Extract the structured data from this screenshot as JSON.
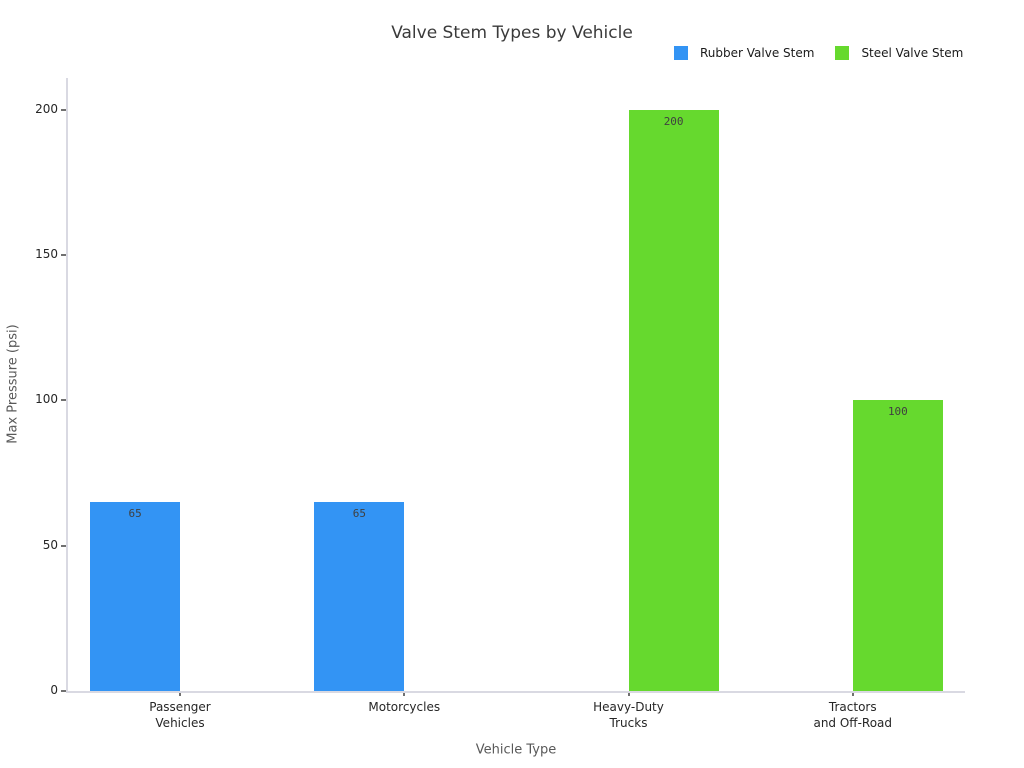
{
  "chart_data": {
    "type": "bar",
    "title": "Valve Stem Types by Vehicle",
    "xlabel": "Vehicle Type",
    "ylabel": "Max Pressure (psi)",
    "categories": [
      "Passenger\nVehicles",
      "Motorcycles",
      "Heavy-Duty\nTrucks",
      "Tractors\nand Off-Road"
    ],
    "series": [
      {
        "name": "Rubber Valve Stem",
        "color": "#3394f4",
        "values": [
          65,
          65,
          0,
          0
        ]
      },
      {
        "name": "Steel Valve Stem",
        "color": "#66d92e",
        "values": [
          0,
          0,
          200,
          100
        ]
      }
    ],
    "bar_value_labels": [
      "65",
      "65",
      "200",
      "100"
    ],
    "yticks": [
      0,
      50,
      100,
      150,
      200
    ],
    "ylim": [
      0,
      211
    ],
    "legend_position": "top-right",
    "grid": false,
    "spine_color": "#d9d9e2",
    "background": "#ffffff"
  }
}
